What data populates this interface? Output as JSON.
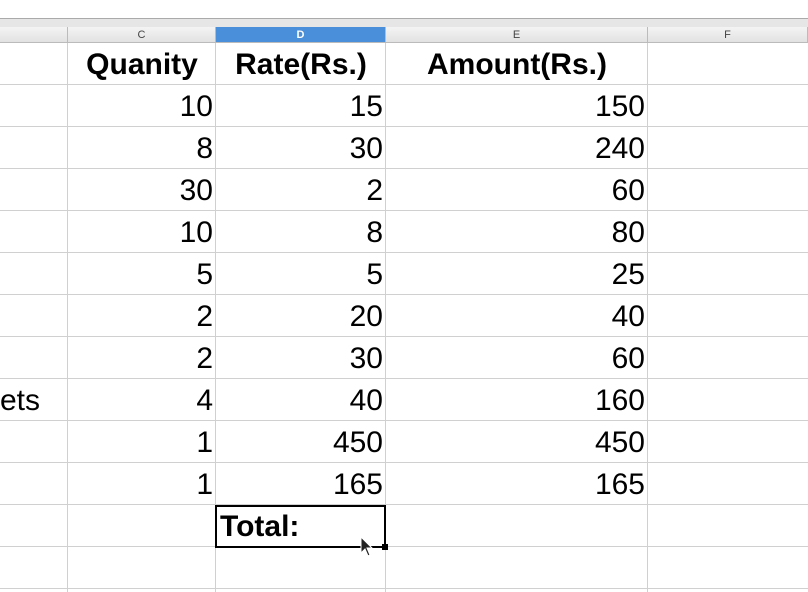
{
  "columns": [
    {
      "label": ""
    },
    {
      "label": "C"
    },
    {
      "label": "D",
      "selected": true
    },
    {
      "label": "E"
    },
    {
      "label": "F"
    }
  ],
  "headers": {
    "quantity": "Quanity",
    "rate": "Rate(Rs.)",
    "amount": "Amount(Rs.)"
  },
  "rows": [
    {
      "b": "",
      "q": "10",
      "r": "15",
      "a": "150"
    },
    {
      "b": "",
      "q": "8",
      "r": "30",
      "a": "240"
    },
    {
      "b": "",
      "q": "30",
      "r": "2",
      "a": "60"
    },
    {
      "b": "",
      "q": "10",
      "r": "8",
      "a": "80"
    },
    {
      "b": "",
      "q": "5",
      "r": "5",
      "a": "25"
    },
    {
      "b": "",
      "q": "2",
      "r": "20",
      "a": "40"
    },
    {
      "b": "",
      "q": "2",
      "r": "30",
      "a": "60"
    },
    {
      "b": "ets",
      "q": "4",
      "r": "40",
      "a": "160"
    },
    {
      "b": "",
      "q": "1",
      "r": "450",
      "a": "450"
    },
    {
      "b": "",
      "q": "1",
      "r": "165",
      "a": "165"
    }
  ],
  "total_label": "Total:",
  "colors": {
    "selected_header": "#4a8fd9",
    "grid": "#d0d0d0"
  }
}
